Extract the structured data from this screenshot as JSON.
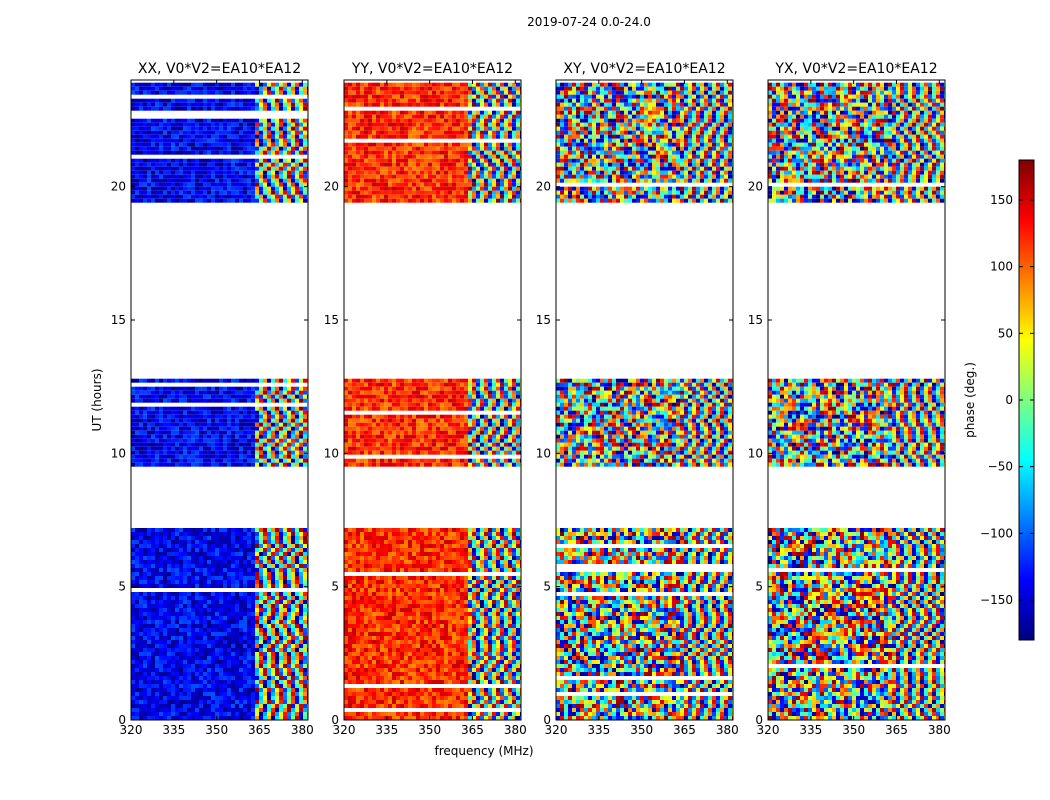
{
  "figure": {
    "suptitle": "2019-07-24 0.0-24.0",
    "xlabel": "frequency (MHz)",
    "ylabel": "UT (hours)"
  },
  "colorbar": {
    "label": "phase (deg.)",
    "ticks": [
      150,
      100,
      50,
      0,
      -50,
      -100,
      -150
    ],
    "range": [
      -180,
      180
    ],
    "colormap": [
      "#00007f",
      "#0000ff",
      "#007fff",
      "#00ffff",
      "#7fff7f",
      "#ffff00",
      "#ff7f00",
      "#ff0000",
      "#7f0000"
    ]
  },
  "chart_data": [
    {
      "type": "heatmap",
      "title": "XX, V0*V2=EA10*EA12",
      "xlim": [
        320,
        382
      ],
      "ylim": [
        0,
        24
      ],
      "xticks": [
        320,
        335,
        350,
        365,
        380
      ],
      "yticks": [
        0,
        5,
        10,
        15,
        20
      ],
      "data_intervals_hours": [
        [
          0,
          7.2
        ],
        [
          9.5,
          12.8
        ],
        [
          19.4,
          23.9
        ]
      ],
      "noise_below_mhz": 363,
      "base_phase_deg": -140
    },
    {
      "type": "heatmap",
      "title": "YY, V0*V2=EA10*EA12",
      "xlim": [
        320,
        382
      ],
      "ylim": [
        0,
        24
      ],
      "xticks": [
        320,
        335,
        350,
        365,
        380
      ],
      "yticks": [
        0,
        5,
        10,
        15,
        20
      ],
      "data_intervals_hours": [
        [
          0,
          7.2
        ],
        [
          9.5,
          12.8
        ],
        [
          19.4,
          23.9
        ]
      ],
      "noise_below_mhz": 363,
      "base_phase_deg": 120
    },
    {
      "type": "heatmap",
      "title": "XY, V0*V2=EA10*EA12",
      "xlim": [
        320,
        382
      ],
      "ylim": [
        0,
        24
      ],
      "xticks": [
        320,
        335,
        350,
        365,
        380
      ],
      "yticks": [
        0,
        5,
        10,
        15,
        20
      ],
      "data_intervals_hours": [
        [
          0,
          7.2
        ],
        [
          9.5,
          12.8
        ],
        [
          19.4,
          23.9
        ]
      ],
      "noise_below_mhz": 363,
      "base_phase_deg": null
    },
    {
      "type": "heatmap",
      "title": "YX, V0*V2=EA10*EA12",
      "xlim": [
        320,
        382
      ],
      "ylim": [
        0,
        24
      ],
      "xticks": [
        320,
        335,
        350,
        365,
        380
      ],
      "yticks": [
        0,
        5,
        10,
        15,
        20
      ],
      "data_intervals_hours": [
        [
          0,
          7.2
        ],
        [
          9.5,
          12.8
        ],
        [
          19.4,
          23.9
        ]
      ],
      "noise_below_mhz": 363,
      "base_phase_deg": null
    }
  ]
}
